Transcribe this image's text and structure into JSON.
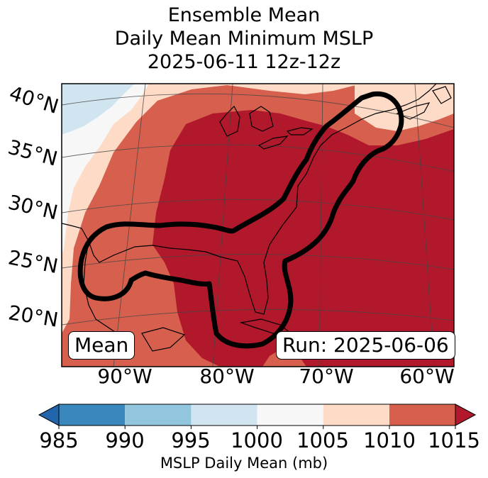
{
  "title": {
    "line1": "Ensemble Mean",
    "line2": "Daily Mean Minimum MSLP",
    "line3": "2025-06-11 12z-12z"
  },
  "map": {
    "lat_labels": [
      "40°N",
      "35°N",
      "30°N",
      "25°N",
      "20°N"
    ],
    "lon_labels": [
      "90°W",
      "80°W",
      "70°W",
      "60°W"
    ],
    "mean_label": "Mean",
    "run_label": "Run: 2025-06-06",
    "colors": {
      "lt985": "#2166ac",
      "b985_990": "#3a87be",
      "b990_995": "#92c5de",
      "b995_1000": "#d1e5f0",
      "b1000_1005": "#f7f7f7",
      "b1005_1010": "#fddbc7",
      "b1010_1015": "#d6604d",
      "gt1015": "#b2182b"
    }
  },
  "colorbar": {
    "ticks": [
      "985",
      "990",
      "995",
      "1000",
      "1005",
      "1010",
      "1015"
    ],
    "label": "MSLP Daily Mean (mb)",
    "colors": [
      "#3a87be",
      "#92c5de",
      "#d1e5f0",
      "#f7f7f7",
      "#fddbc7",
      "#d6604d"
    ],
    "under_color": "#2166ac",
    "over_color": "#b2182b"
  }
}
